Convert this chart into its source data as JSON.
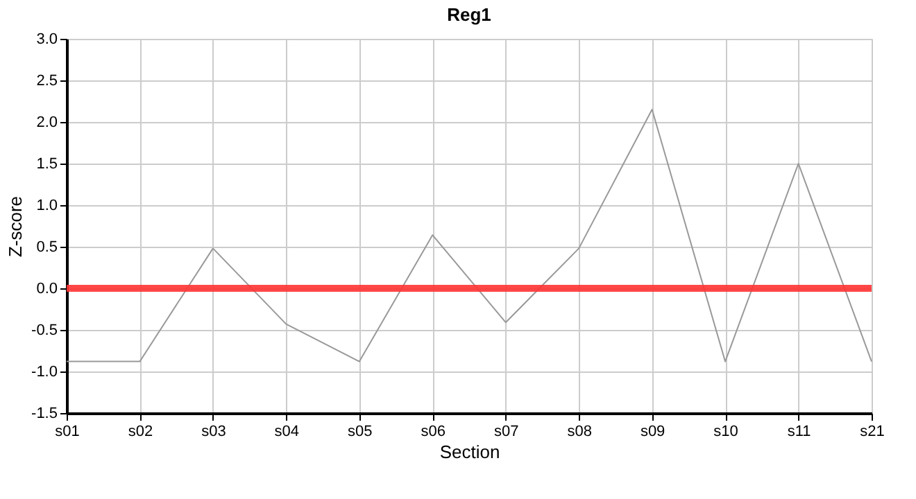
{
  "chart_data": {
    "type": "line",
    "title": "Reg1",
    "xlabel": "Section",
    "ylabel": "Z-score",
    "categories": [
      "s01",
      "s02",
      "s03",
      "s04",
      "s05",
      "s06",
      "s07",
      "s08",
      "s09",
      "s10",
      "s11",
      "s21"
    ],
    "series": [
      {
        "color": "#999999",
        "values": [
          -0.88,
          -0.88,
          0.48,
          -0.43,
          -0.88,
          0.64,
          -0.41,
          0.48,
          2.15,
          -0.88,
          1.5,
          -0.88
        ]
      }
    ],
    "ylim": [
      -1.5,
      3.0
    ],
    "yticks": [
      -1.5,
      {
        "value": -1,
        "label": "-1.0"
      },
      -0.5,
      {
        "value": 0,
        "label": "0.0"
      },
      0.5,
      {
        "value": 1,
        "label": "1.0"
      },
      1.5,
      {
        "value": 2,
        "label": "2.0"
      },
      2.5,
      {
        "value": 3,
        "label": "3.0"
      }
    ],
    "ref_lines": [
      {
        "axis": "y",
        "value": 0,
        "color": "#ff3333"
      }
    ],
    "grid": true,
    "marker": "none",
    "line_style": "solid"
  }
}
